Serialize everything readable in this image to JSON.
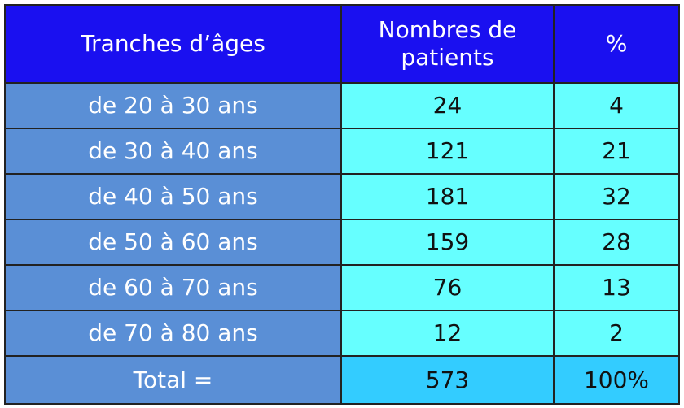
{
  "colors": {
    "header_bg": "#1a10f0",
    "label_bg": "#5a8fd6",
    "value_bg": "#66ffff",
    "total_bg": "#33ccff"
  },
  "chart_data": {
    "type": "table",
    "columns": [
      "Tranches d’âges",
      "Nombres de patients",
      "%"
    ],
    "rows": [
      [
        "de 20 à 30 ans",
        "24",
        "4"
      ],
      [
        "de 30 à 40 ans",
        "121",
        "21"
      ],
      [
        "de 40 à 50 ans",
        "181",
        "32"
      ],
      [
        "de 50 à 60 ans",
        "159",
        "28"
      ],
      [
        "de 60 à 70 ans",
        "76",
        "13"
      ],
      [
        "de 70 à 80 ans",
        "12",
        "2"
      ]
    ],
    "total": [
      "Total =",
      "573",
      "100%"
    ]
  }
}
